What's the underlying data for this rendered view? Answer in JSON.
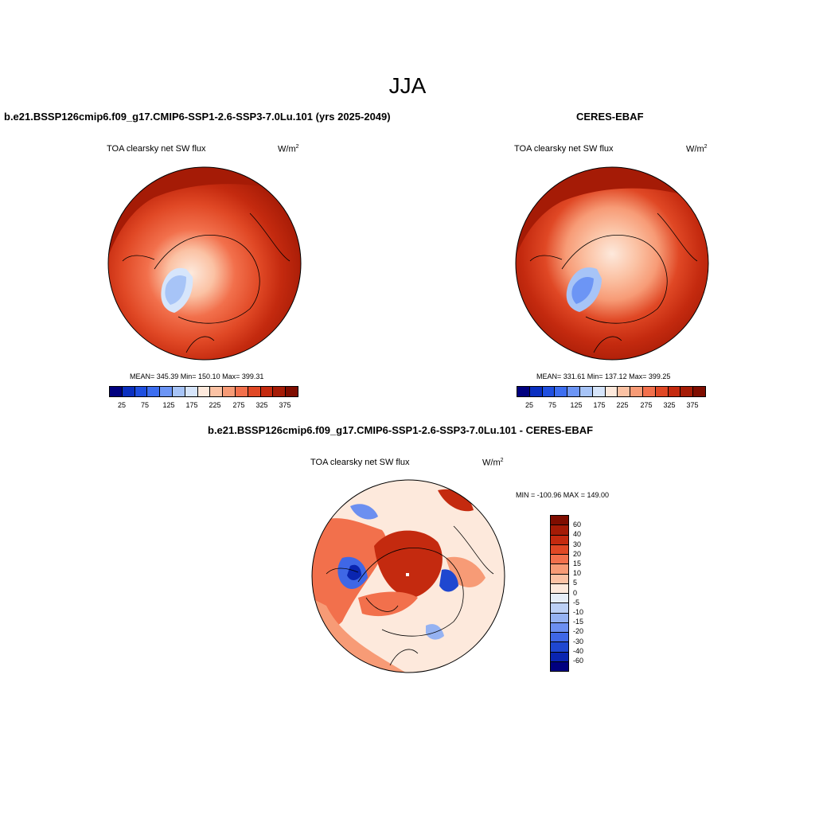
{
  "season": "JJA",
  "panels": [
    {
      "title": "b.e21.BSSP126cmip6.f09_g17.CMIP6-SSP1-2.6-SSP3-7.0Lu.101 (yrs 2025-2049)",
      "variable": "TOA clearsky net SW flux",
      "units": "W/m",
      "units_exp": "2",
      "stats": "MEAN= 345.39  Min= 150.10  Max= 399.31",
      "colorbar_labels": [
        "25",
        "75",
        "125",
        "175",
        "225",
        "275",
        "325",
        "375"
      ]
    },
    {
      "title": "CERES-EBAF",
      "variable": "TOA clearsky net SW flux",
      "units": "W/m",
      "units_exp": "2",
      "stats": "MEAN= 331.61  Min= 137.12  Max= 399.25",
      "colorbar_labels": [
        "25",
        "75",
        "125",
        "175",
        "225",
        "275",
        "325",
        "375"
      ]
    }
  ],
  "diff": {
    "title": "b.e21.BSSP126cmip6.f09_g17.CMIP6-SSP1-2.6-SSP3-7.0Lu.101 - CERES-EBAF",
    "variable": "TOA clearsky net SW flux",
    "units": "W/m",
    "units_exp": "2",
    "minmax": "MIN = -100.96 MAX = 149.00",
    "colorbar_labels": [
      "60",
      "40",
      "30",
      "20",
      "15",
      "10",
      "5",
      "0",
      "-5",
      "-10",
      "-15",
      "-20",
      "-30",
      "-40",
      "-60"
    ]
  },
  "colors": {
    "abs_scale": [
      "#00007f",
      "#0a2fc0",
      "#1f4fe0",
      "#3d6ef0",
      "#6c95f5",
      "#a7c4f7",
      "#d6e5fb",
      "#fde9dc",
      "#fbc2a4",
      "#f79b76",
      "#f2704c",
      "#e04825",
      "#c42a0f",
      "#a51b06",
      "#7f0d00"
    ],
    "diff_scale": [
      "#7f0d00",
      "#a51b06",
      "#c42a0f",
      "#e04825",
      "#f2704c",
      "#f79b76",
      "#fbc2a4",
      "#fde9dc",
      "#e6eef8",
      "#bcd0f5",
      "#95b2f2",
      "#6c8ff0",
      "#3f67e6",
      "#1f47d0",
      "#0a25b0",
      "#00007f"
    ]
  }
}
